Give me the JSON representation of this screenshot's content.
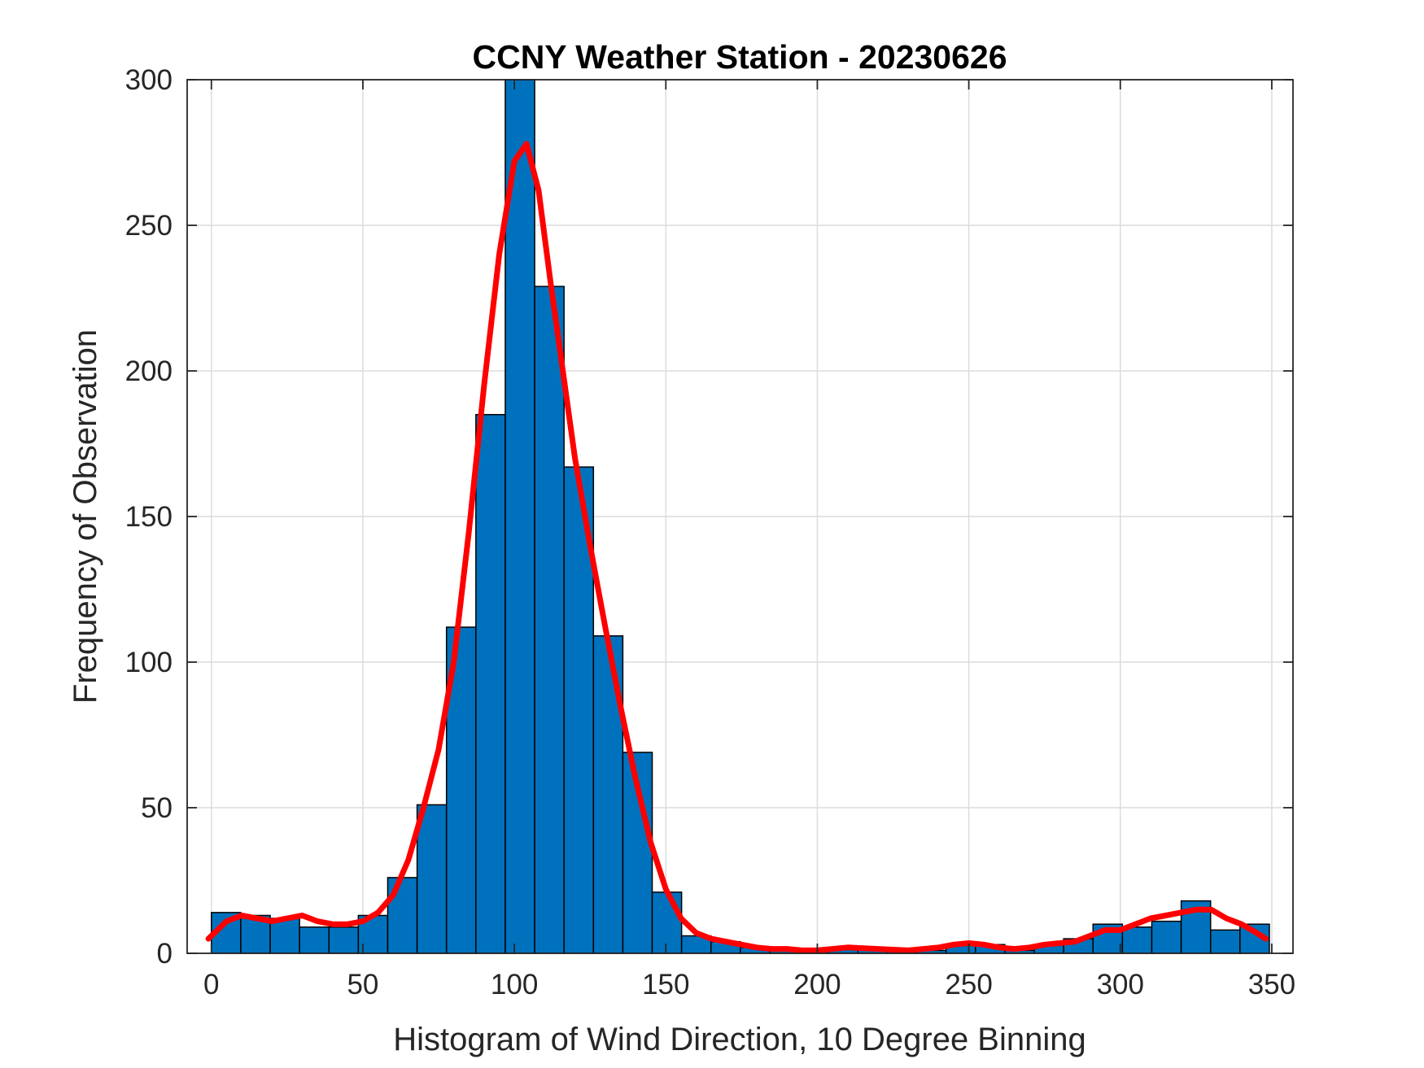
{
  "chart_data": {
    "type": "bar",
    "title": "CCNY Weather Station - 20230626",
    "xlabel": "Histogram of Wind Direction, 10 Degree Binning",
    "ylabel": "Frequency of Observation",
    "xlim": [
      -8,
      357
    ],
    "ylim": [
      0,
      300
    ],
    "bin_width": 9.7,
    "grid": true,
    "colors": {
      "bar": "#0072BD",
      "curve": "#FF0000"
    },
    "bin_edges": [
      0,
      9.7,
      19.4,
      29.1,
      38.8,
      48.5,
      58.2,
      67.9,
      77.6,
      87.3,
      97.0,
      106.7,
      116.4,
      126.1,
      135.8,
      145.5,
      155.2,
      164.9,
      174.6,
      184.3,
      194.0,
      203.7,
      213.4,
      223.1,
      232.8,
      242.5,
      252.2,
      261.9,
      271.6,
      281.3,
      291.0,
      300.7,
      310.4,
      320.1,
      329.8,
      339.5
    ],
    "values": [
      14,
      13,
      12,
      9,
      9,
      13,
      26,
      51,
      112,
      185,
      300,
      229,
      167,
      109,
      69,
      21,
      6,
      4,
      2,
      1,
      1,
      2,
      2,
      1,
      1,
      3,
      3,
      1,
      3,
      5,
      10,
      9,
      11,
      18,
      8,
      10
    ],
    "density_curve": {
      "x": [
        -1,
        5,
        10,
        15,
        20,
        25,
        30,
        35,
        40,
        45,
        50,
        55,
        60,
        65,
        70,
        75,
        80,
        85,
        90,
        95,
        100,
        104,
        108,
        112,
        116,
        120,
        125,
        130,
        135,
        140,
        145,
        150,
        155,
        160,
        165,
        170,
        175,
        180,
        185,
        190,
        195,
        200,
        210,
        220,
        230,
        240,
        245,
        250,
        255,
        260,
        265,
        270,
        275,
        280,
        285,
        290,
        295,
        300,
        305,
        310,
        315,
        320,
        325,
        330,
        335,
        340,
        345,
        348
      ],
      "y": [
        5,
        11,
        13,
        12,
        11,
        12,
        13,
        11,
        10,
        10,
        11,
        14,
        20,
        32,
        50,
        70,
        100,
        145,
        195,
        240,
        272,
        278,
        262,
        230,
        200,
        170,
        140,
        112,
        85,
        60,
        38,
        22,
        12,
        7,
        5,
        4,
        3,
        2,
        1.5,
        1.5,
        1,
        1,
        2,
        1.5,
        1,
        2,
        3,
        3.5,
        3,
        2,
        1.5,
        2,
        3,
        3.5,
        4,
        6,
        8,
        8,
        10,
        12,
        13,
        14,
        15,
        15,
        12,
        10,
        7,
        5
      ]
    },
    "x_ticks": [
      0,
      50,
      100,
      150,
      200,
      250,
      300,
      350
    ],
    "x_tick_labels": [
      "0",
      "50",
      "100",
      "150",
      "200",
      "250",
      "300",
      "350"
    ],
    "y_ticks": [
      0,
      50,
      100,
      150,
      200,
      250,
      300
    ],
    "y_tick_labels": [
      "0",
      "50",
      "100",
      "150",
      "200",
      "250",
      "300"
    ]
  }
}
